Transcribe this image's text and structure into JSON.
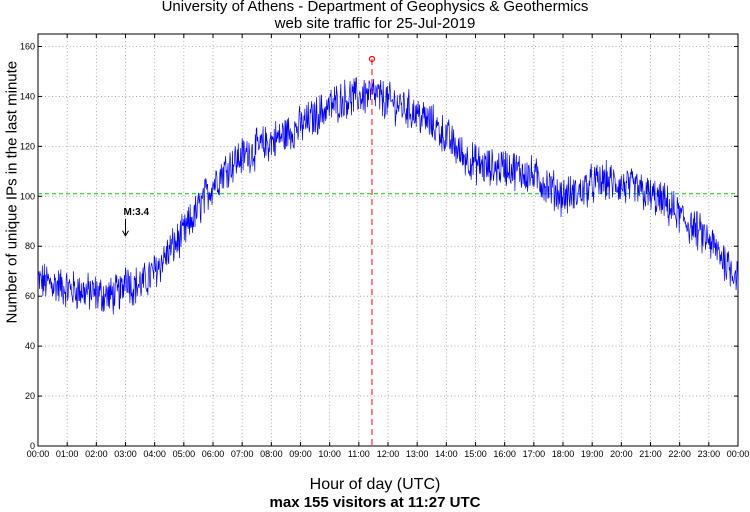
{
  "chart_data": {
    "type": "line",
    "title": [
      "University of Athens - Department of Geophysics & Geothermics",
      "web site traffic for 25-Jul-2019"
    ],
    "xlabel": "Hour of day (UTC)",
    "subtitle": "max 155 visitors at 11:27 UTC",
    "ylabel": "Number of unique IPs in the last minute",
    "xlim": [
      0,
      24
    ],
    "ylim": [
      0,
      165
    ],
    "yticks": [
      0,
      20,
      40,
      60,
      80,
      100,
      120,
      140,
      160
    ],
    "xtick_labels": [
      "00:00",
      "01:00",
      "02:00",
      "03:00",
      "04:00",
      "05:00",
      "06:00",
      "07:00",
      "08:00",
      "09:00",
      "10:00",
      "11:00",
      "12:00",
      "13:00",
      "14:00",
      "15:00",
      "16:00",
      "17:00",
      "18:00",
      "19:00",
      "20:00",
      "21:00",
      "22:00",
      "23:00",
      "00:00"
    ],
    "grid": true,
    "series_color": "#0000ff",
    "reference_line": {
      "value": 101,
      "color": "#00cc00",
      "style": "dashed"
    },
    "max_marker": {
      "hour": 11.45,
      "value": 155,
      "color": "#ff0000"
    },
    "annotation": {
      "text": "M:3.4",
      "hour": 3.0,
      "value": 83
    },
    "trend": [
      [
        0.0,
        66
      ],
      [
        0.5,
        65
      ],
      [
        1.0,
        63
      ],
      [
        1.5,
        62
      ],
      [
        2.0,
        61
      ],
      [
        2.5,
        60
      ],
      [
        2.9,
        62
      ],
      [
        3.0,
        70
      ],
      [
        3.2,
        64
      ],
      [
        3.6,
        65
      ],
      [
        4.0,
        70
      ],
      [
        4.5,
        78
      ],
      [
        5.0,
        85
      ],
      [
        5.5,
        95
      ],
      [
        6.0,
        105
      ],
      [
        6.5,
        112
      ],
      [
        7.0,
        116
      ],
      [
        7.5,
        119
      ],
      [
        8.0,
        122
      ],
      [
        8.5,
        125
      ],
      [
        9.0,
        128
      ],
      [
        9.5,
        132
      ],
      [
        10.0,
        136
      ],
      [
        10.5,
        139
      ],
      [
        11.0,
        140
      ],
      [
        11.45,
        141
      ],
      [
        12.0,
        138
      ],
      [
        12.5,
        136
      ],
      [
        13.0,
        133
      ],
      [
        13.5,
        129
      ],
      [
        14.0,
        124
      ],
      [
        14.5,
        117
      ],
      [
        15.0,
        113
      ],
      [
        15.5,
        111
      ],
      [
        16.0,
        112
      ],
      [
        16.5,
        110
      ],
      [
        17.0,
        108
      ],
      [
        17.5,
        104
      ],
      [
        18.0,
        100
      ],
      [
        18.5,
        101
      ],
      [
        19.0,
        105
      ],
      [
        19.5,
        106
      ],
      [
        20.0,
        104
      ],
      [
        20.5,
        103
      ],
      [
        21.0,
        100
      ],
      [
        21.5,
        97
      ],
      [
        22.0,
        92
      ],
      [
        22.5,
        87
      ],
      [
        23.0,
        82
      ],
      [
        23.5,
        75
      ],
      [
        24.0,
        68
      ]
    ],
    "noise_amplitude": 7,
    "samples_per_hour": 60
  }
}
